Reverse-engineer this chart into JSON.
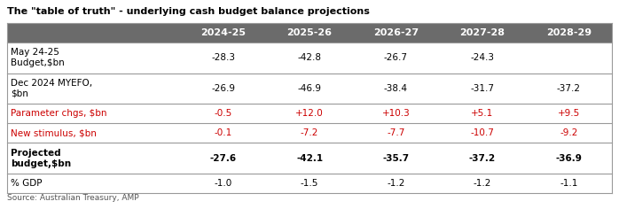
{
  "title": "The \"table of truth\" - underlying cash budget balance projections",
  "source": "Source: Australian Treasury, AMP",
  "columns": [
    "2024-25",
    "2025-26",
    "2026-27",
    "2027-28",
    "2028-29"
  ],
  "rows": [
    {
      "label": "May 24-25\nBudget,$bn",
      "values": [
        "-28.3",
        "-42.8",
        "-26.7",
        "-24.3",
        ""
      ],
      "bold": false,
      "red": false,
      "multiline": true
    },
    {
      "label": "Dec 2024 MYEFO,\n$bn",
      "values": [
        "-26.9",
        "-46.9",
        "-38.4",
        "-31.7",
        "-37.2"
      ],
      "bold": false,
      "red": false,
      "multiline": true
    },
    {
      "label": "Parameter chgs, $bn",
      "values": [
        "-0.5",
        "+12.0",
        "+10.3",
        "+5.1",
        "+9.5"
      ],
      "bold": false,
      "red": true,
      "multiline": false
    },
    {
      "label": "New stimulus, $bn",
      "values": [
        "-0.1",
        "-7.2",
        "-7.7",
        "-10.7",
        "-9.2"
      ],
      "bold": false,
      "red": true,
      "multiline": false
    },
    {
      "label": "Projected\nbudget,$bn",
      "values": [
        "-27.6",
        "-42.1",
        "-35.7",
        "-37.2",
        "-36.9"
      ],
      "bold": true,
      "red": false,
      "multiline": true
    },
    {
      "label": "% GDP",
      "values": [
        "-1.0",
        "-1.5",
        "-1.2",
        "-1.2",
        "-1.1"
      ],
      "bold": false,
      "red": false,
      "multiline": false
    }
  ],
  "header_bg": "#6b6b6b",
  "header_fg": "#ffffff",
  "border_color": "#999999",
  "red_color": "#cc0000",
  "black_color": "#000000",
  "title_fontsize": 8.0,
  "header_fontsize": 8.0,
  "cell_fontsize": 7.5,
  "source_fontsize": 6.5,
  "figsize": [
    6.98,
    2.36
  ],
  "dpi": 100
}
